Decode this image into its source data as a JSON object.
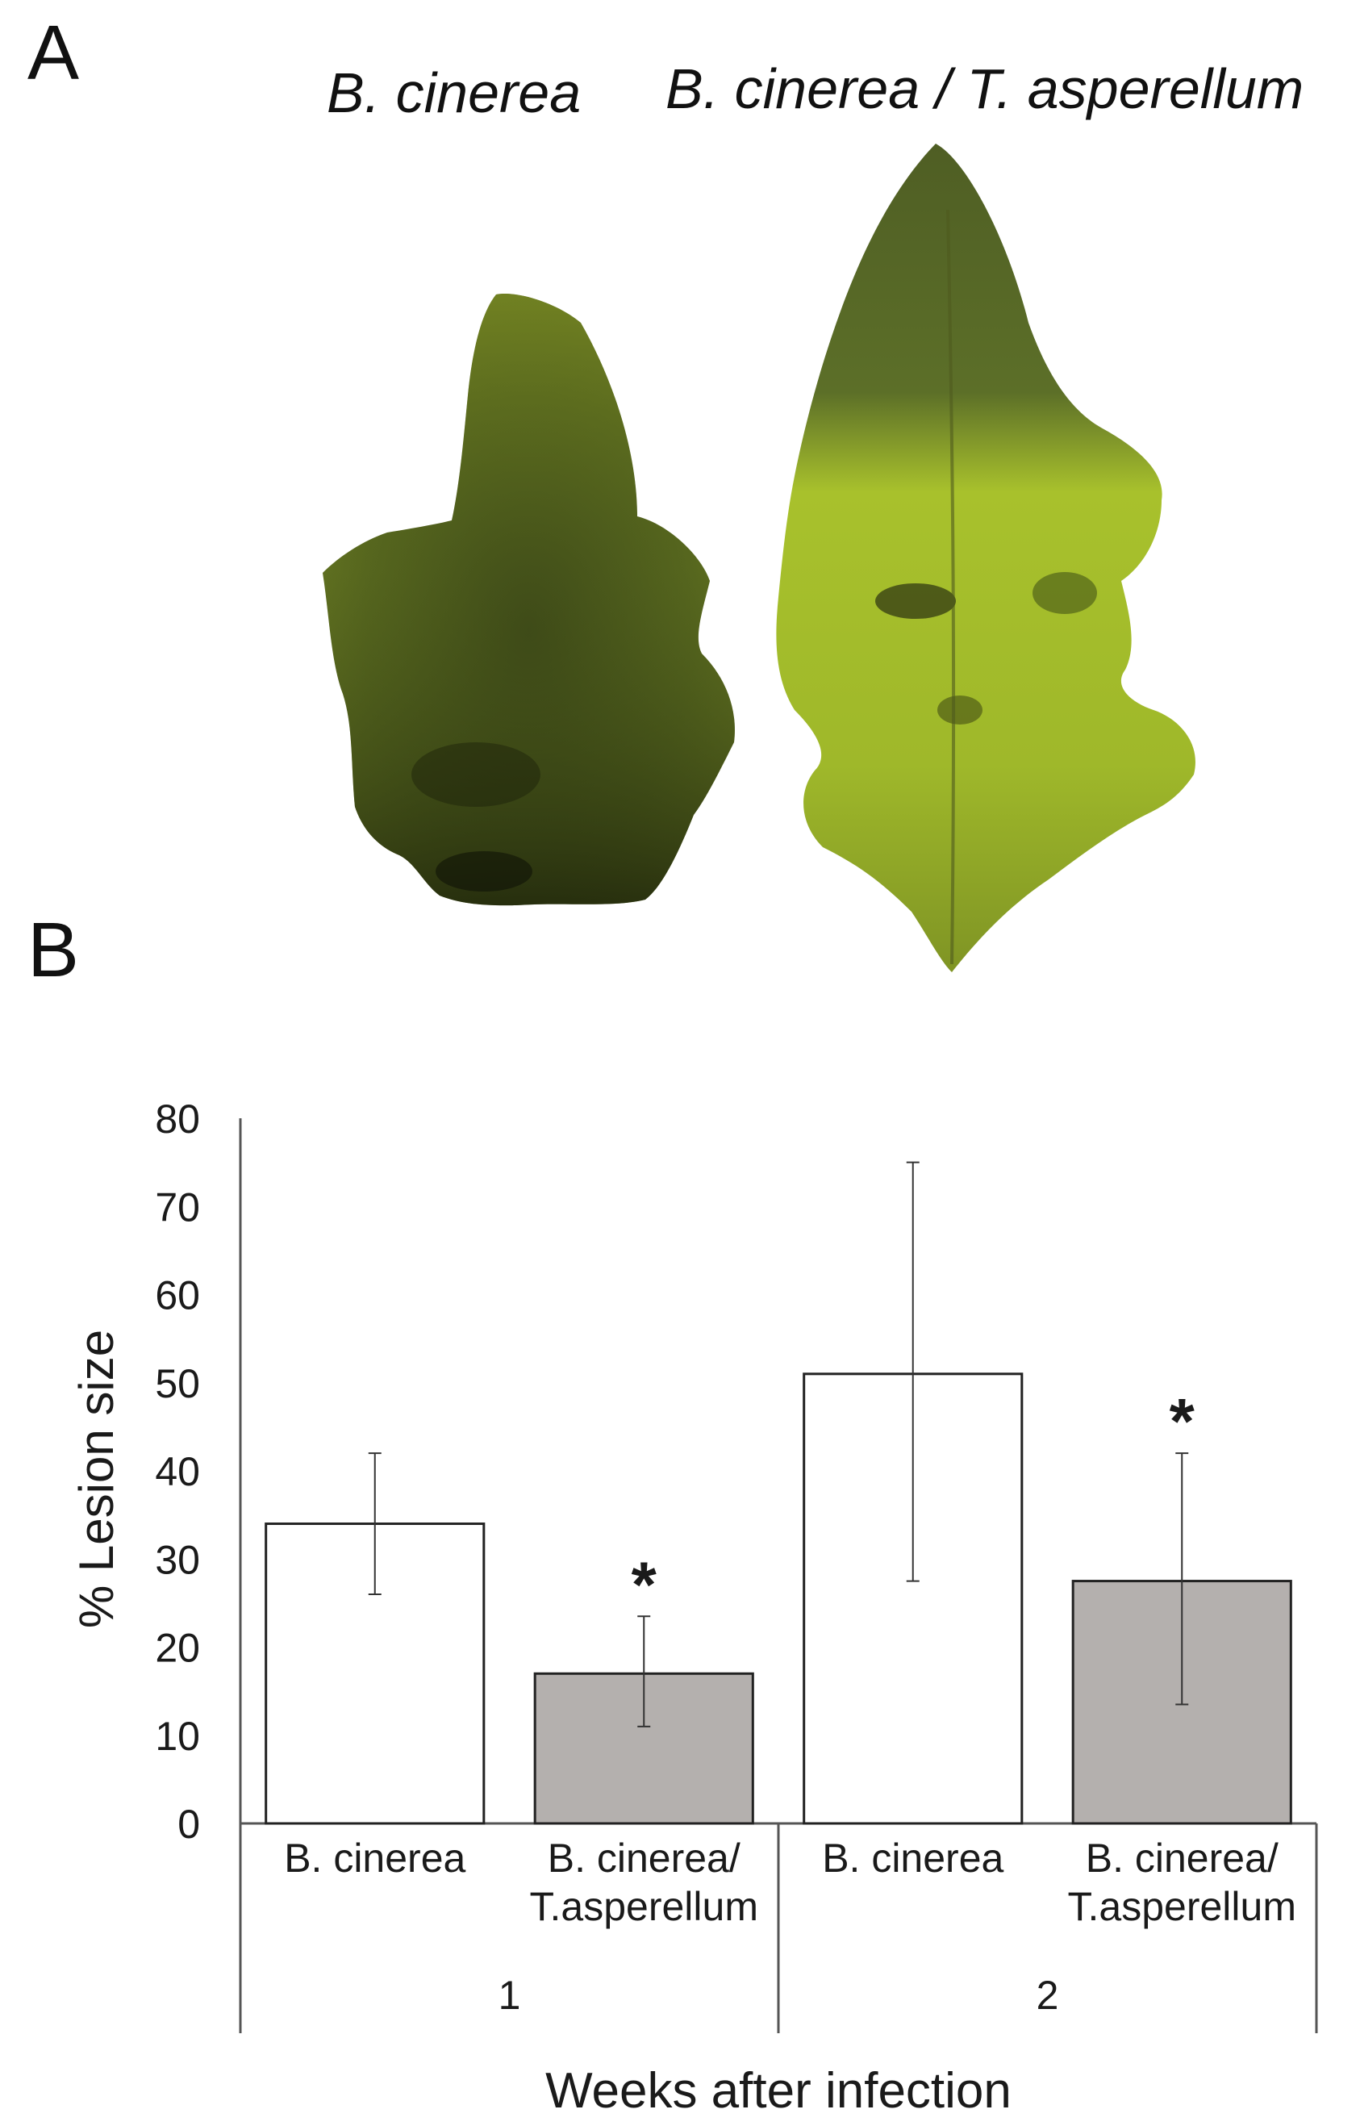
{
  "panels": {
    "a_label": "A",
    "b_label": "B",
    "leaf_left_label": "B. cinerea",
    "leaf_right_label": "B. cinerea / T. asperellum"
  },
  "colors": {
    "bar_control": "#ffffff",
    "bar_treated": "#b4b0ae",
    "bar_stroke": "#222222",
    "leaf_dark": "#2e3a14",
    "leaf_yellow": "#a9c02a"
  },
  "chart_data": {
    "type": "bar",
    "ylabel": "% Lesion size",
    "xlabel": "Weeks after infection",
    "ylim": [
      0,
      80
    ],
    "yticks": [
      0,
      10,
      20,
      30,
      40,
      50,
      60,
      70,
      80
    ],
    "grid": false,
    "groups": [
      {
        "label": "1",
        "bars": [
          {
            "label_lines": [
              "B. cinerea"
            ],
            "value": 34,
            "err_low": 26,
            "err_high": 42,
            "style": "control",
            "significance": ""
          },
          {
            "label_lines": [
              "B. cinerea/",
              "T.asperellum"
            ],
            "value": 17,
            "err_low": 11,
            "err_high": 23.5,
            "style": "treated",
            "significance": "*"
          }
        ]
      },
      {
        "label": "2",
        "bars": [
          {
            "label_lines": [
              "B. cinerea"
            ],
            "value": 51,
            "err_low": 27.5,
            "err_high": 75,
            "style": "control",
            "significance": ""
          },
          {
            "label_lines": [
              "B. cinerea/",
              "T.asperellum"
            ],
            "value": 27.5,
            "err_low": 13.5,
            "err_high": 42,
            "style": "treated",
            "significance": "*"
          }
        ]
      }
    ]
  }
}
